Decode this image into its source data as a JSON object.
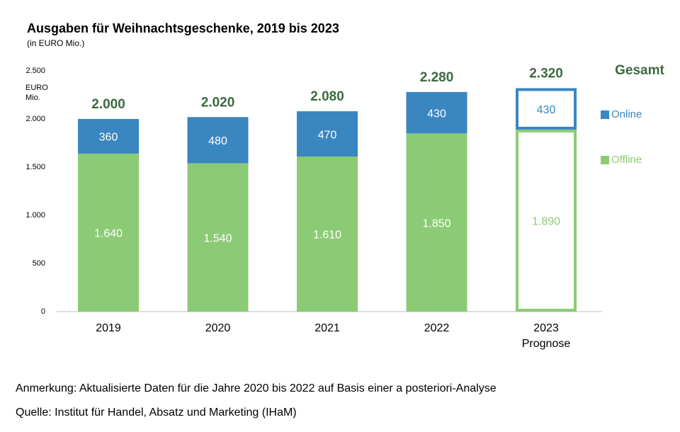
{
  "chart_data": {
    "type": "stacked_bar",
    "title": "Ausgaben für Weihnachtsgeschenke, 2019 bis 2023",
    "subtitle": "(in EURO Mio.)",
    "y_label": "EURO Mio.",
    "categories": [
      "2019",
      "2020",
      "2021",
      "2022",
      "2023"
    ],
    "category_notes": [
      null,
      null,
      null,
      null,
      "Prognose"
    ],
    "series": [
      {
        "name": "Offline",
        "color": "#8ccb75",
        "values": [
          1640,
          1540,
          1610,
          1850,
          1890
        ],
        "value_labels": [
          "1.640",
          "1.540",
          "1.610",
          "1.850",
          "1.890"
        ]
      },
      {
        "name": "Online",
        "color": "#3a86c0",
        "values": [
          360,
          480,
          470,
          430,
          430
        ]
      }
    ],
    "totals": {
      "name": "Gesamt",
      "color": "#3c6a3e",
      "values": [
        2000,
        2020,
        2080,
        2280,
        2320
      ],
      "value_labels": [
        "2.000",
        "2.020",
        "2.080",
        "2.280",
        "2.320"
      ]
    },
    "ylim": [
      0,
      2500
    ],
    "yticks": [
      0,
      500,
      {
        "value": 1000,
        "label": "1.000"
      },
      {
        "value": 1500,
        "label": "1.500"
      },
      {
        "value": 2000,
        "label": "2.000"
      },
      {
        "value": 2500,
        "label": "2.500"
      }
    ],
    "grid": false,
    "legend": "right"
  },
  "notes": [
    "Anmerkung: Aktualisierte Daten für die Jahre 2020 bis 2022 auf Basis einer a posteriori-Analyse",
    "Quelle: Institut für Handel, Absatz und Marketing (IHaM)"
  ]
}
